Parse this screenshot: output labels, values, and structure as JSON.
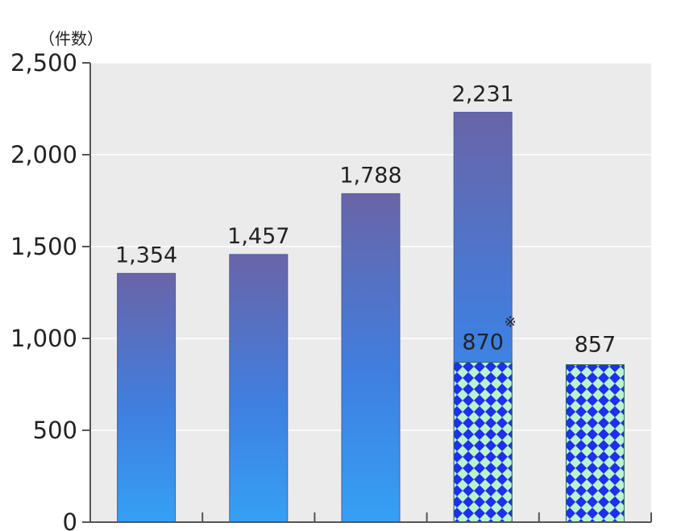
{
  "chart_data": {
    "type": "bar",
    "unit_label": "（件数）",
    "ylim": [
      0,
      2500
    ],
    "yticks": [
      "0",
      "500",
      "1,000",
      "1,500",
      "2,000",
      "2,500"
    ],
    "grid": true,
    "categories": [
      "",
      "",
      "",
      "",
      ""
    ],
    "series": [
      {
        "values": [
          1354,
          1457,
          1788,
          2231,
          null
        ],
        "labels": [
          "1,354",
          "1,457",
          "1,788",
          "2,231",
          ""
        ],
        "color": "#3b8ee8",
        "color_top": "#6a64a8"
      },
      {
        "values": [
          null,
          null,
          null,
          870,
          857
        ],
        "labels": [
          "",
          "",
          "",
          "870",
          "857"
        ],
        "color": "#1f2ef0",
        "color_alt": "#b8f5cc"
      }
    ],
    "annotation": "※"
  }
}
